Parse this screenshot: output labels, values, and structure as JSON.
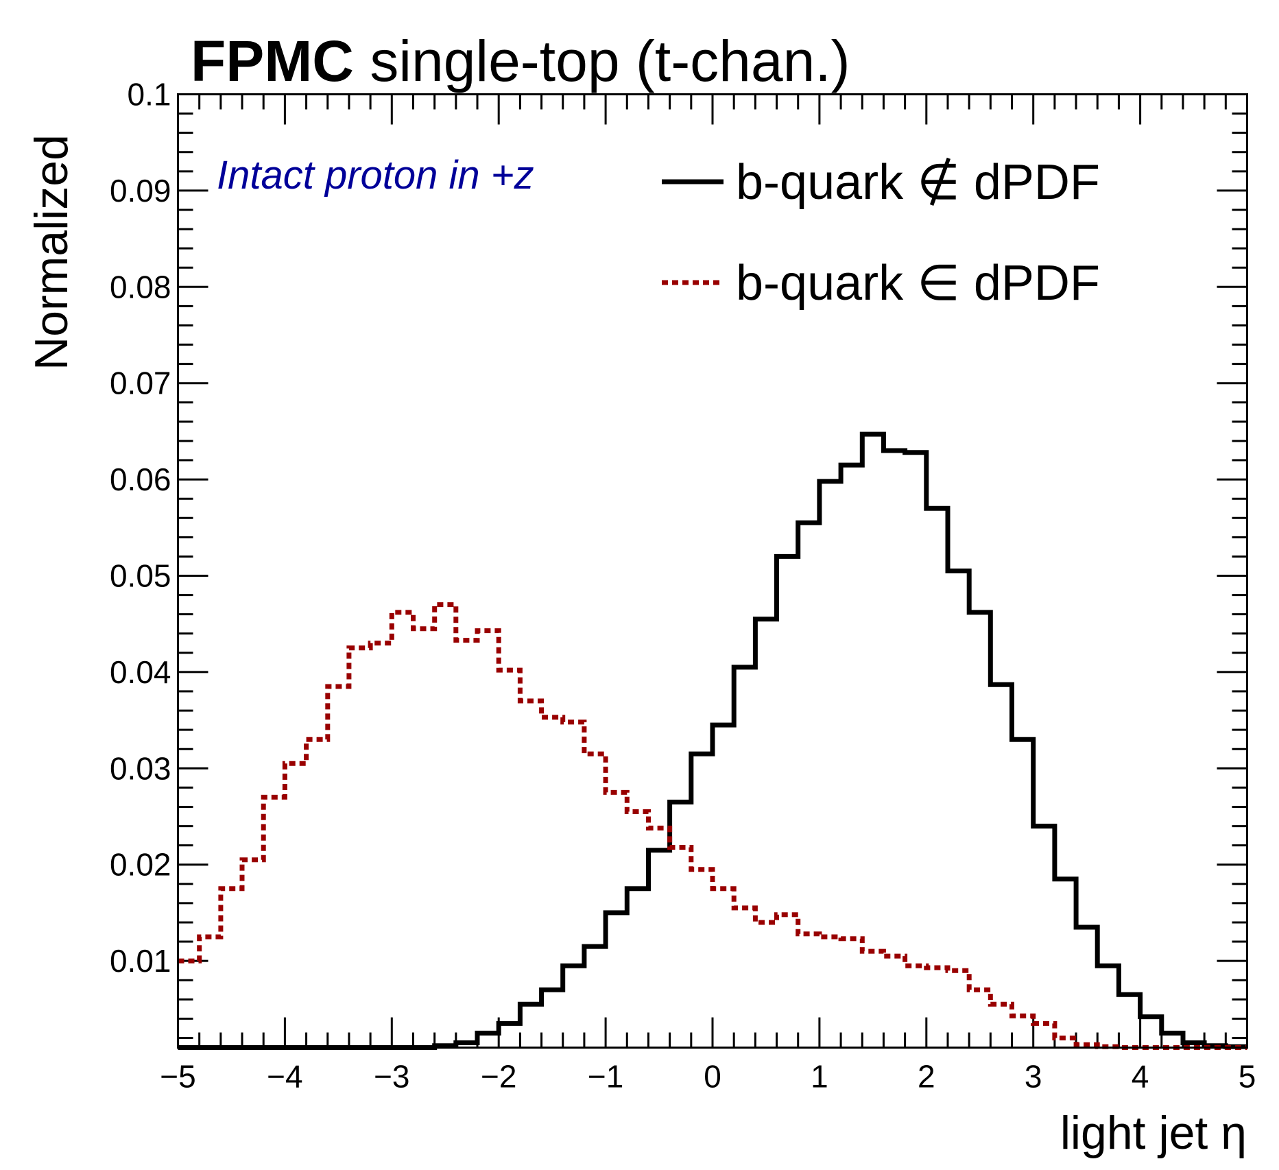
{
  "chart_data": {
    "type": "histogram",
    "title": {
      "bold": "FPMC",
      "rest": " single-top (t-chan.)"
    },
    "xlabel": "light jet η",
    "ylabel": "Normalized",
    "xlim": [
      -5,
      5
    ],
    "ylim": [
      0.001,
      0.1
    ],
    "x_ticks": [
      -5,
      -4,
      -3,
      -2,
      -1,
      0,
      1,
      2,
      3,
      4,
      5
    ],
    "x_tick_labels": [
      "−5",
      "−4",
      "−3",
      "−2",
      "−1",
      "0",
      "1",
      "2",
      "3",
      "4",
      "5"
    ],
    "y_ticks": [
      0.01,
      0.02,
      0.03,
      0.04,
      0.05,
      0.06,
      0.07,
      0.08,
      0.09,
      0.1
    ],
    "y_tick_labels": [
      "0.01",
      "0.02",
      "0.03",
      "0.04",
      "0.05",
      "0.06",
      "0.07",
      "0.08",
      "0.09",
      "0.1"
    ],
    "annotation": "Intact proton in +z",
    "bin_width": 0.2,
    "series": [
      {
        "name": "b-quark ∉ dPDF",
        "color": "#000000",
        "style": "solid",
        "values": [
          0.001,
          0.001,
          0.001,
          0.001,
          0.001,
          0.001,
          0.001,
          0.001,
          0.001,
          0.001,
          0.001,
          0.001,
          0.0012,
          0.0015,
          0.0025,
          0.0035,
          0.0055,
          0.007,
          0.0095,
          0.0115,
          0.015,
          0.0175,
          0.0215,
          0.0265,
          0.0315,
          0.0345,
          0.0405,
          0.0455,
          0.052,
          0.0555,
          0.0598,
          0.0615,
          0.0647,
          0.063,
          0.0628,
          0.057,
          0.0505,
          0.0462,
          0.0387,
          0.033,
          0.024,
          0.0185,
          0.0135,
          0.0095,
          0.0065,
          0.0042,
          0.0025,
          0.0015,
          0.0012,
          0.0011
        ]
      },
      {
        "name": "b-quark ∈ dPDF",
        "color": "#990000",
        "style": "dashed",
        "values": [
          0.01,
          0.0125,
          0.0175,
          0.0205,
          0.027,
          0.0305,
          0.033,
          0.0385,
          0.0425,
          0.043,
          0.0462,
          0.0445,
          0.047,
          0.0433,
          0.0443,
          0.0402,
          0.037,
          0.0353,
          0.0348,
          0.0315,
          0.0275,
          0.0255,
          0.0238,
          0.0218,
          0.0195,
          0.0175,
          0.0155,
          0.014,
          0.0148,
          0.0128,
          0.0125,
          0.0123,
          0.011,
          0.0105,
          0.0095,
          0.0093,
          0.009,
          0.007,
          0.0055,
          0.0043,
          0.0035,
          0.002,
          0.0013,
          0.0011,
          0.001,
          0.001,
          0.001,
          0.001,
          0.001,
          0.001
        ]
      }
    ]
  }
}
